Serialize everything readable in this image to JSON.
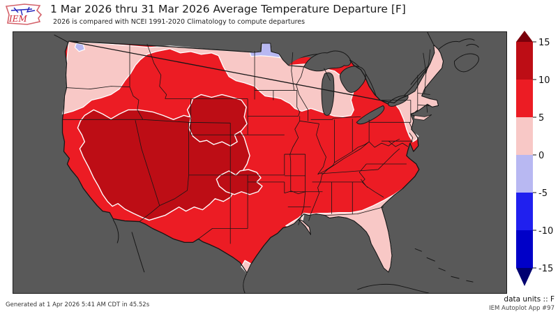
{
  "header": {
    "title": "1 Mar 2026 thru 31 Mar 2026 Average Temperature Departure [F]",
    "subtitle": "2026 is compared with NCEI 1991-2020 Climatology to compute departures",
    "logo_text": "IEM"
  },
  "footer": {
    "generated": "Generated at 1 Apr 2026 5:41 AM CDT in 45.52s",
    "units_label": "data units :: F",
    "app_label": "IEM Autoplot App #97"
  },
  "colors": {
    "page_bg": "#ffffff",
    "map_bg": "#595959",
    "outline": "#141414",
    "white_contour": "#ffffff",
    "dark_red": "#bd0d15",
    "red": "#ec1c24",
    "pink": "#f8c8c6",
    "lavender": "#b8b8f2",
    "blue": "#2020ef",
    "dark_blue": "#0000c8",
    "over_arrow": "#7a000b",
    "under_arrow": "#000070"
  },
  "chart_data": {
    "type": "choropleth-map",
    "title": "1 Mar 2026 thru 31 Mar 2026 Average Temperature Departure [F]",
    "units": "F",
    "legend_levels": [
      -15,
      -10,
      -5,
      0,
      5,
      10,
      15
    ],
    "legend_tick_labels": [
      "15",
      "10",
      "5",
      "0",
      "-5",
      "-10",
      "-15"
    ],
    "legend_position": "right",
    "regions": [
      {
        "area": "Great Basin, Nevada, Utah, western Colorado, northern Arizona, northwest New Mexico, southeast California",
        "departure_f": "10 to 15"
      },
      {
        "area": "Wyoming and north-central Colorado blob",
        "departure_f": "10 to 15"
      },
      {
        "area": "Texas/Oklahoma panhandles and southeast Colorado blob",
        "departure_f": "10 to 15"
      },
      {
        "area": "Most of the contiguous United States (central, southern, eastern interior)",
        "departure_f": "5 to 10"
      },
      {
        "area": "Pacific Northwest (Washington, northern Oregon, northern Idaho)",
        "departure_f": "0 to 5"
      },
      {
        "area": "Northern Montana / North Dakota / northern Minnesota strip, Wisconsin, most of Michigan",
        "departure_f": "0 to 5"
      },
      {
        "area": "Upstate New York, New England, New Jersey",
        "departure_f": "0 to 5"
      },
      {
        "area": "Gulf Coast strip, Florida, coastal Georgia and Carolinas, south Texas coast",
        "departure_f": "0 to 5"
      },
      {
        "area": "Puget Sound (northwest Washington)",
        "departure_f": "0 to -5"
      },
      {
        "area": "Far northern Minnesota border strip",
        "departure_f": "0 to -5"
      }
    ]
  },
  "colorbar": {
    "tick_labels": [
      "15",
      "10",
      "5",
      "0",
      "-5",
      "-10",
      "-15"
    ],
    "segment_color_keys": [
      "dark_red",
      "red",
      "pink",
      "lavender",
      "blue",
      "dark_blue"
    ]
  }
}
